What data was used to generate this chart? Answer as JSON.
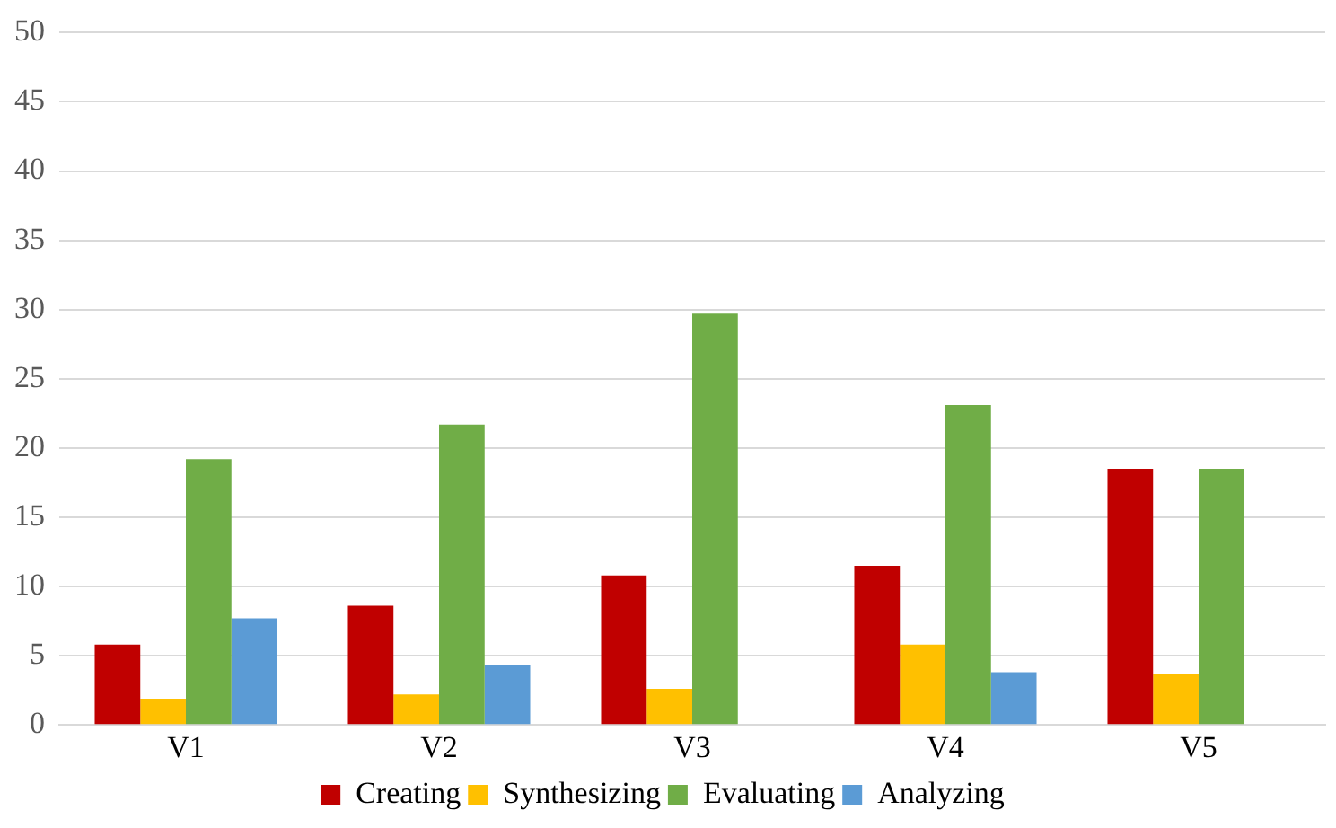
{
  "chart_data": {
    "type": "bar",
    "categories": [
      "V1",
      "V2",
      "V3",
      "V4",
      "V5"
    ],
    "series": [
      {
        "name": "Creating",
        "color": "#c00000",
        "values": [
          5.8,
          8.6,
          10.8,
          11.5,
          18.5
        ]
      },
      {
        "name": "Synthesizing",
        "color": "#ffc000",
        "values": [
          1.9,
          2.2,
          2.6,
          5.8,
          3.7
        ]
      },
      {
        "name": "Evaluating",
        "color": "#70ad47",
        "values": [
          19.2,
          21.7,
          29.7,
          23.1,
          18.5
        ]
      },
      {
        "name": "Analyzing",
        "color": "#5b9bd5",
        "values": [
          7.7,
          4.3,
          null,
          3.8,
          null
        ]
      }
    ],
    "ylim": [
      0,
      50
    ],
    "yticks": [
      0,
      5,
      10,
      15,
      20,
      25,
      30,
      35,
      40,
      45,
      50
    ],
    "grid": "y",
    "legend": "bottom"
  }
}
